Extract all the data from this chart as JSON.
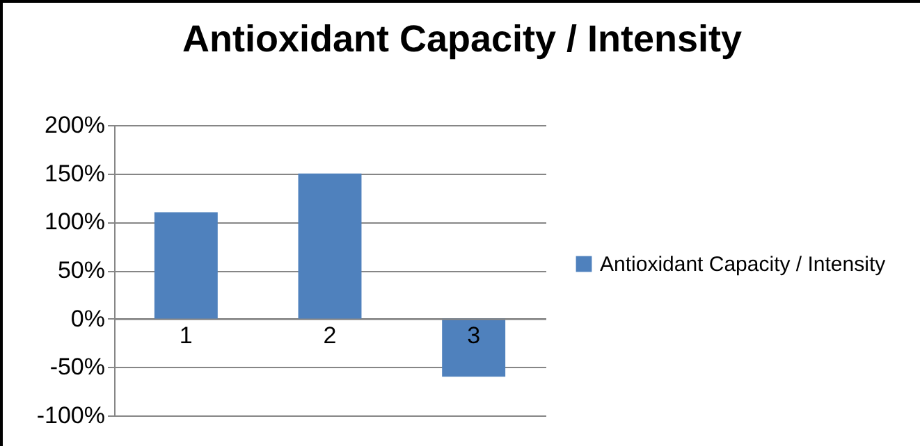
{
  "chart_data": {
    "type": "bar",
    "title": "Antioxidant Capacity / Intensity",
    "categories": [
      "1",
      "2",
      "3"
    ],
    "series": [
      {
        "name": "Antioxidant Capacity / Intensity",
        "color": "#4f81bd",
        "values": [
          110,
          150,
          -60
        ]
      }
    ],
    "ylim": [
      -100,
      200
    ],
    "yticks": [
      {
        "value": -100,
        "label": "-100%"
      },
      {
        "value": -50,
        "label": "-50%"
      },
      {
        "value": 0,
        "label": "0%"
      },
      {
        "value": 50,
        "label": "50%"
      },
      {
        "value": 100,
        "label": "100%"
      },
      {
        "value": 150,
        "label": "150%"
      },
      {
        "value": 200,
        "label": "200%"
      }
    ],
    "grid": "y",
    "legend": "right"
  }
}
